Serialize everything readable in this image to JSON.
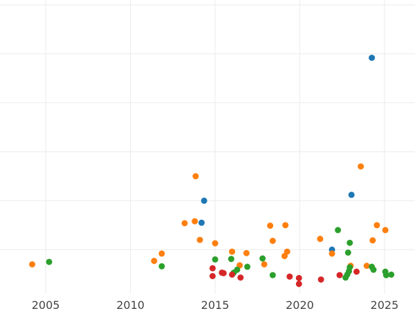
{
  "chart_data": {
    "type": "scatter",
    "title": "",
    "xlabel": "",
    "ylabel": "",
    "x_ticks": [
      2005,
      2010,
      2015,
      2020,
      2025
    ],
    "xlim": [
      2002.3,
      2026.8
    ],
    "ylim": [
      0,
      6
    ],
    "y_grid": [
      0.9,
      1.9,
      2.9,
      3.9,
      4.9,
      5.9
    ],
    "grid": true,
    "series": [
      {
        "color": "#1f77b4",
        "points": [
          {
            "x": 2014.2,
            "y": 1.45
          },
          {
            "x": 2014.35,
            "y": 1.9
          },
          {
            "x": 2021.9,
            "y": 0.9
          },
          {
            "x": 2023.05,
            "y": 2.02
          },
          {
            "x": 2024.25,
            "y": 4.82
          }
        ]
      },
      {
        "color": "#ff7f0e",
        "points": [
          {
            "x": 2004.2,
            "y": 0.6
          },
          {
            "x": 2011.4,
            "y": 0.67
          },
          {
            "x": 2011.85,
            "y": 0.82
          },
          {
            "x": 2013.2,
            "y": 1.44
          },
          {
            "x": 2013.8,
            "y": 1.48
          },
          {
            "x": 2013.85,
            "y": 2.4
          },
          {
            "x": 2014.1,
            "y": 1.1
          },
          {
            "x": 2015.0,
            "y": 1.03
          },
          {
            "x": 2016.0,
            "y": 0.86
          },
          {
            "x": 2016.45,
            "y": 0.58
          },
          {
            "x": 2016.85,
            "y": 0.83
          },
          {
            "x": 2017.9,
            "y": 0.6
          },
          {
            "x": 2018.25,
            "y": 1.39
          },
          {
            "x": 2018.4,
            "y": 1.08
          },
          {
            "x": 2019.1,
            "y": 0.77
          },
          {
            "x": 2019.15,
            "y": 1.4
          },
          {
            "x": 2019.25,
            "y": 0.86
          },
          {
            "x": 2021.2,
            "y": 1.12
          },
          {
            "x": 2021.9,
            "y": 0.82
          },
          {
            "x": 2023.0,
            "y": 0.57
          },
          {
            "x": 2023.6,
            "y": 2.6
          },
          {
            "x": 2023.95,
            "y": 0.57
          },
          {
            "x": 2024.3,
            "y": 1.09
          },
          {
            "x": 2024.55,
            "y": 1.4
          },
          {
            "x": 2025.05,
            "y": 1.3
          }
        ]
      },
      {
        "color": "#2ca02c",
        "points": [
          {
            "x": 2005.2,
            "y": 0.65
          },
          {
            "x": 2011.85,
            "y": 0.56
          },
          {
            "x": 2015.0,
            "y": 0.7
          },
          {
            "x": 2015.95,
            "y": 0.71
          },
          {
            "x": 2016.3,
            "y": 0.49
          },
          {
            "x": 2016.1,
            "y": 0.43
          },
          {
            "x": 2016.9,
            "y": 0.55
          },
          {
            "x": 2017.8,
            "y": 0.72
          },
          {
            "x": 2018.4,
            "y": 0.38
          },
          {
            "x": 2022.25,
            "y": 1.3
          },
          {
            "x": 2022.7,
            "y": 0.33
          },
          {
            "x": 2022.8,
            "y": 0.39
          },
          {
            "x": 2022.9,
            "y": 0.46
          },
          {
            "x": 2022.95,
            "y": 0.54
          },
          {
            "x": 2022.85,
            "y": 0.84
          },
          {
            "x": 2022.95,
            "y": 1.04
          },
          {
            "x": 2024.25,
            "y": 0.55
          },
          {
            "x": 2024.35,
            "y": 0.49
          },
          {
            "x": 2025.05,
            "y": 0.45
          },
          {
            "x": 2025.1,
            "y": 0.38
          },
          {
            "x": 2025.4,
            "y": 0.39
          }
        ]
      },
      {
        "color": "#d62728",
        "points": [
          {
            "x": 2014.85,
            "y": 0.52
          },
          {
            "x": 2014.85,
            "y": 0.36
          },
          {
            "x": 2015.4,
            "y": 0.43
          },
          {
            "x": 2015.5,
            "y": 0.42
          },
          {
            "x": 2016.0,
            "y": 0.39
          },
          {
            "x": 2016.5,
            "y": 0.33
          },
          {
            "x": 2019.4,
            "y": 0.35
          },
          {
            "x": 2019.95,
            "y": 0.32
          },
          {
            "x": 2019.95,
            "y": 0.2
          },
          {
            "x": 2021.25,
            "y": 0.29
          },
          {
            "x": 2022.35,
            "y": 0.38
          },
          {
            "x": 2023.35,
            "y": 0.45
          }
        ]
      }
    ]
  }
}
